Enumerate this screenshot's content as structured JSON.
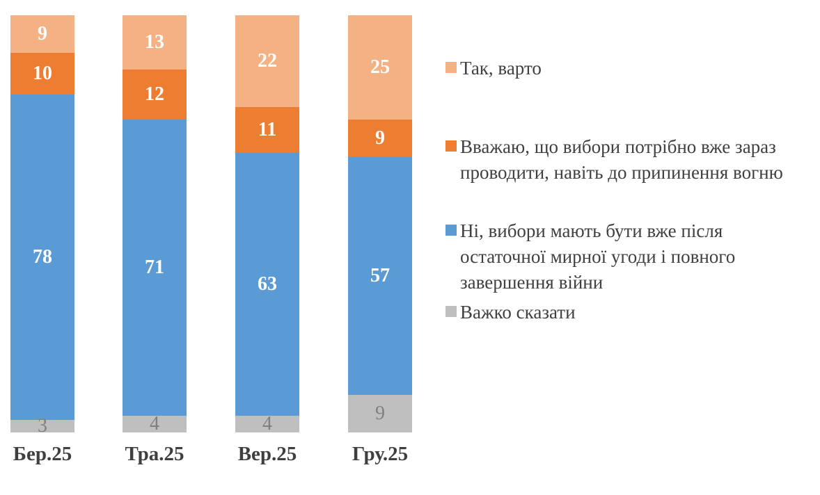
{
  "chart_data": {
    "type": "bar",
    "stacked": true,
    "orientation": "vertical",
    "unit": "percent",
    "title": "",
    "xlabel": "",
    "ylabel": "",
    "ylim": [
      0,
      100
    ],
    "grid": false,
    "axes_visible": false,
    "legend_position": "right",
    "pixels_per_unit": 6,
    "categories": [
      "Бер.25",
      "Тра.25",
      "Вер.25",
      "Гру.25"
    ],
    "series": [
      {
        "name": "Так, варто",
        "color": "#F4B183",
        "label_color": "#FFFFFF",
        "label_bold": true,
        "values": [
          9,
          13,
          22,
          25
        ]
      },
      {
        "name": "Вважаю, що вибори потрібно вже зараз проводити, навіть до припинення вогню",
        "color": "#ED7D31",
        "label_color": "#FFFFFF",
        "label_bold": true,
        "values": [
          10,
          12,
          11,
          9
        ]
      },
      {
        "name": "Ні, вибори мають бути вже після остаточної мирної угоди і повного завершення війни",
        "color": "#5B9BD5",
        "label_color": "#FFFFFF",
        "label_bold": true,
        "values": [
          78,
          71,
          63,
          57
        ]
      },
      {
        "name": "Важко сказати",
        "color": "#BFBFBF",
        "label_color": "#808080",
        "label_bold": false,
        "values": [
          3,
          4,
          4,
          9
        ]
      }
    ],
    "text_color": "#404040",
    "category_label_color": "#3F3F3F"
  }
}
